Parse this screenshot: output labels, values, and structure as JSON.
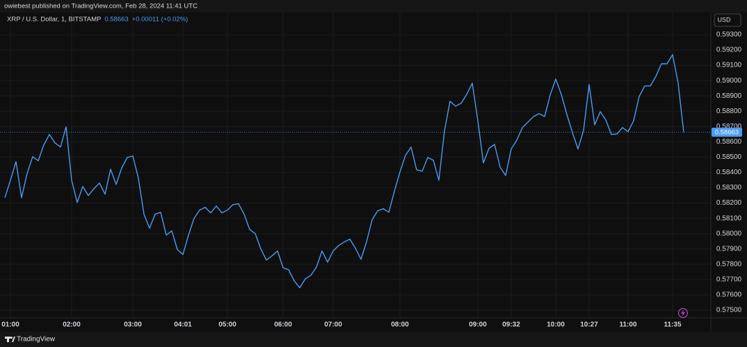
{
  "header": {
    "publisher_line": "owiebest published on TradingView.com, Feb 28, 2024 11:41 UTC"
  },
  "footer": {
    "brand": "TradingView"
  },
  "chart_data": {
    "type": "line",
    "currency": "USD",
    "last_value": 0.58663,
    "change": "+0.00011 (+0.02%)",
    "ylim": [
      0.5745,
      0.59445
    ],
    "yticks": [
      {
        "value": 0.575,
        "label": "0.57500"
      },
      {
        "value": 0.576,
        "label": "0.57600"
      },
      {
        "value": 0.577,
        "label": "0.57700"
      },
      {
        "value": 0.578,
        "label": "0.57800"
      },
      {
        "value": 0.579,
        "label": "0.57900"
      },
      {
        "value": 0.58,
        "label": "0.58000"
      },
      {
        "value": 0.581,
        "label": "0.58100"
      },
      {
        "value": 0.582,
        "label": "0.58200"
      },
      {
        "value": 0.583,
        "label": "0.58300"
      },
      {
        "value": 0.584,
        "label": "0.58400"
      },
      {
        "value": 0.585,
        "label": "0.58500"
      },
      {
        "value": 0.586,
        "label": "0.58600"
      },
      {
        "value": 0.587,
        "label": "0.58700"
      },
      {
        "value": 0.588,
        "label": "0.58800"
      },
      {
        "value": 0.589,
        "label": "0.58900"
      },
      {
        "value": 0.59,
        "label": "0.59000"
      },
      {
        "value": 0.591,
        "label": "0.59100"
      },
      {
        "value": 0.592,
        "label": "0.59200"
      },
      {
        "value": 0.593,
        "label": "0.59300"
      }
    ],
    "grid": true,
    "categories": [
      null,
      "01:00",
      null,
      null,
      null,
      null,
      null,
      null,
      null,
      null,
      null,
      null,
      "02:00",
      null,
      null,
      null,
      null,
      null,
      null,
      null,
      null,
      null,
      null,
      "03:00",
      null,
      null,
      null,
      null,
      null,
      null,
      null,
      null,
      "04:01",
      null,
      null,
      null,
      null,
      null,
      null,
      null,
      "05:00",
      null,
      null,
      null,
      null,
      null,
      null,
      null,
      null,
      null,
      "06:00",
      null,
      null,
      null,
      null,
      null,
      null,
      null,
      null,
      "07:00",
      null,
      null,
      null,
      null,
      null,
      null,
      null,
      null,
      null,
      null,
      null,
      "08:00",
      null,
      null,
      null,
      null,
      null,
      null,
      null,
      null,
      null,
      null,
      null,
      null,
      null,
      "09:00",
      null,
      null,
      null,
      null,
      null,
      "09:32",
      null,
      null,
      null,
      null,
      null,
      null,
      null,
      "10:00",
      null,
      null,
      null,
      null,
      null,
      "10:27",
      null,
      null,
      null,
      null,
      null,
      null,
      "11:00",
      null,
      null,
      null,
      null,
      null,
      null,
      null,
      "11:35",
      null,
      null
    ],
    "series": [
      {
        "name": "XRP / U.S. Dollar, 1, BITSTAMP",
        "color": "#4a9cf5",
        "values": [
          0.58235,
          0.58349,
          0.58471,
          0.58235,
          0.58394,
          0.58503,
          0.58476,
          0.5858,
          0.58648,
          0.58593,
          0.58566,
          0.58698,
          0.58349,
          0.58204,
          0.58308,
          0.58249,
          0.58294,
          0.58331,
          0.58258,
          0.58421,
          0.58322,
          0.5843,
          0.58498,
          0.58507,
          0.58362,
          0.58127,
          0.58036,
          0.58127,
          0.5814,
          0.57991,
          0.58018,
          0.57896,
          0.57864,
          0.57991,
          0.581,
          0.58154,
          0.58172,
          0.58136,
          0.58181,
          0.58136,
          0.58154,
          0.5819,
          0.58195,
          0.58127,
          0.58027,
          0.58,
          0.579,
          0.57828,
          0.57855,
          0.57887,
          0.57778,
          0.57764,
          0.57692,
          0.57647,
          0.57705,
          0.57728,
          0.57782,
          0.57887,
          0.57814,
          0.57887,
          0.57923,
          0.57946,
          0.57964,
          0.57905,
          0.57832,
          0.57946,
          0.58091,
          0.58149,
          0.58163,
          0.5814,
          0.58276,
          0.58403,
          0.58512,
          0.58566,
          0.58417,
          0.58408,
          0.58498,
          0.5848,
          0.58349,
          0.5867,
          0.58865,
          0.58833,
          0.58852,
          0.5891,
          0.58983,
          0.58738,
          0.58462,
          0.58557,
          0.58584,
          0.58435,
          0.5838,
          0.58553,
          0.58611,
          0.58693,
          0.58729,
          0.58765,
          0.58784,
          0.58765,
          0.58906,
          0.5901,
          0.5891,
          0.58779,
          0.58661,
          0.58553,
          0.58675,
          0.58974,
          0.58711,
          0.58797,
          0.58743,
          0.58648,
          0.58652,
          0.58693,
          0.58666,
          0.58738,
          0.58897,
          0.58965,
          0.58965,
          0.59028,
          0.5911,
          0.5911,
          0.59169,
          0.58983,
          0.58663
        ]
      }
    ]
  }
}
